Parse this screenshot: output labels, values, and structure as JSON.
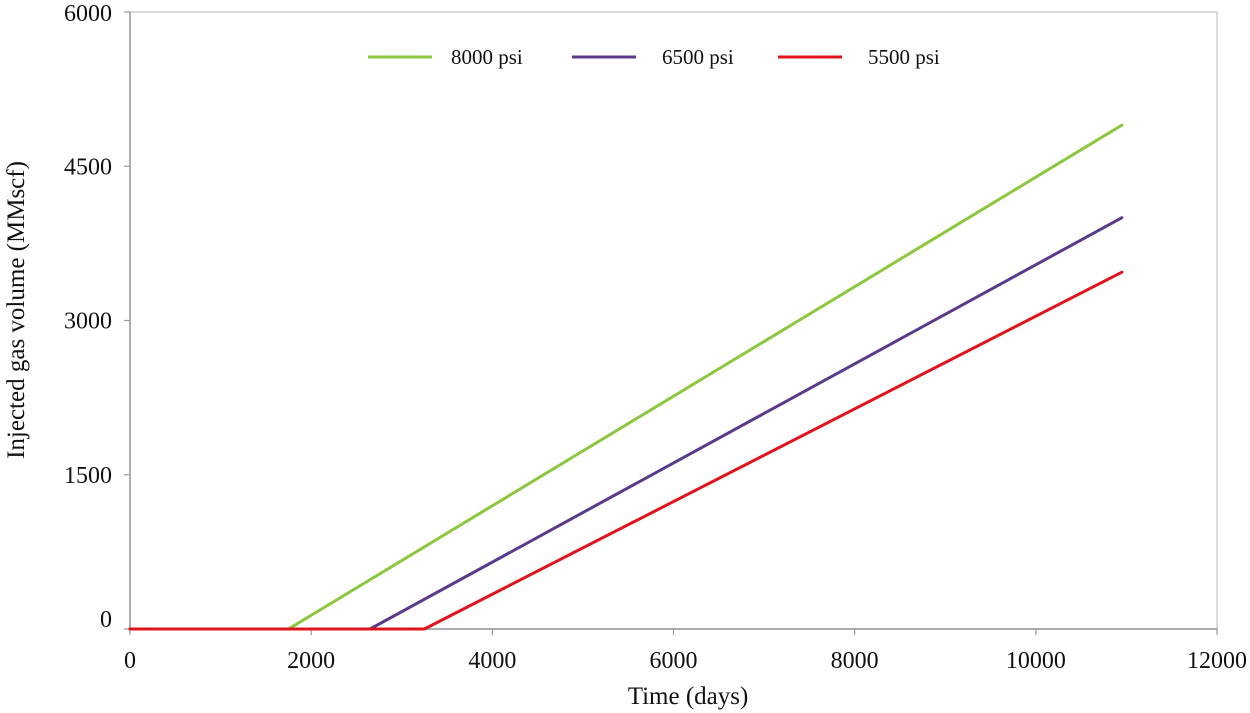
{
  "chart_data": {
    "type": "line",
    "title": "",
    "xlabel": "Time (days)",
    "ylabel": "Injected gas volume (MMscf)",
    "xlim": [
      0,
      12000
    ],
    "ylim": [
      0,
      6000
    ],
    "xticks": [
      0,
      2000,
      4000,
      6000,
      8000,
      10000,
      12000
    ],
    "yticks": [
      0,
      1500,
      3000,
      4500,
      6000
    ],
    "grid": false,
    "legend_position": "top",
    "series": [
      {
        "name": "8000 psi",
        "color": "#8dc63f",
        "x": [
          0,
          1750,
          10950
        ],
        "y": [
          0,
          0,
          4900
        ]
      },
      {
        "name": "6500 psi",
        "color": "#5b3a8c",
        "x": [
          0,
          2650,
          10950
        ],
        "y": [
          0,
          0,
          4000
        ]
      },
      {
        "name": "5500 psi",
        "color": "#e0141c",
        "x": [
          0,
          3250,
          10950
        ],
        "y": [
          0,
          0,
          3470
        ]
      }
    ]
  }
}
